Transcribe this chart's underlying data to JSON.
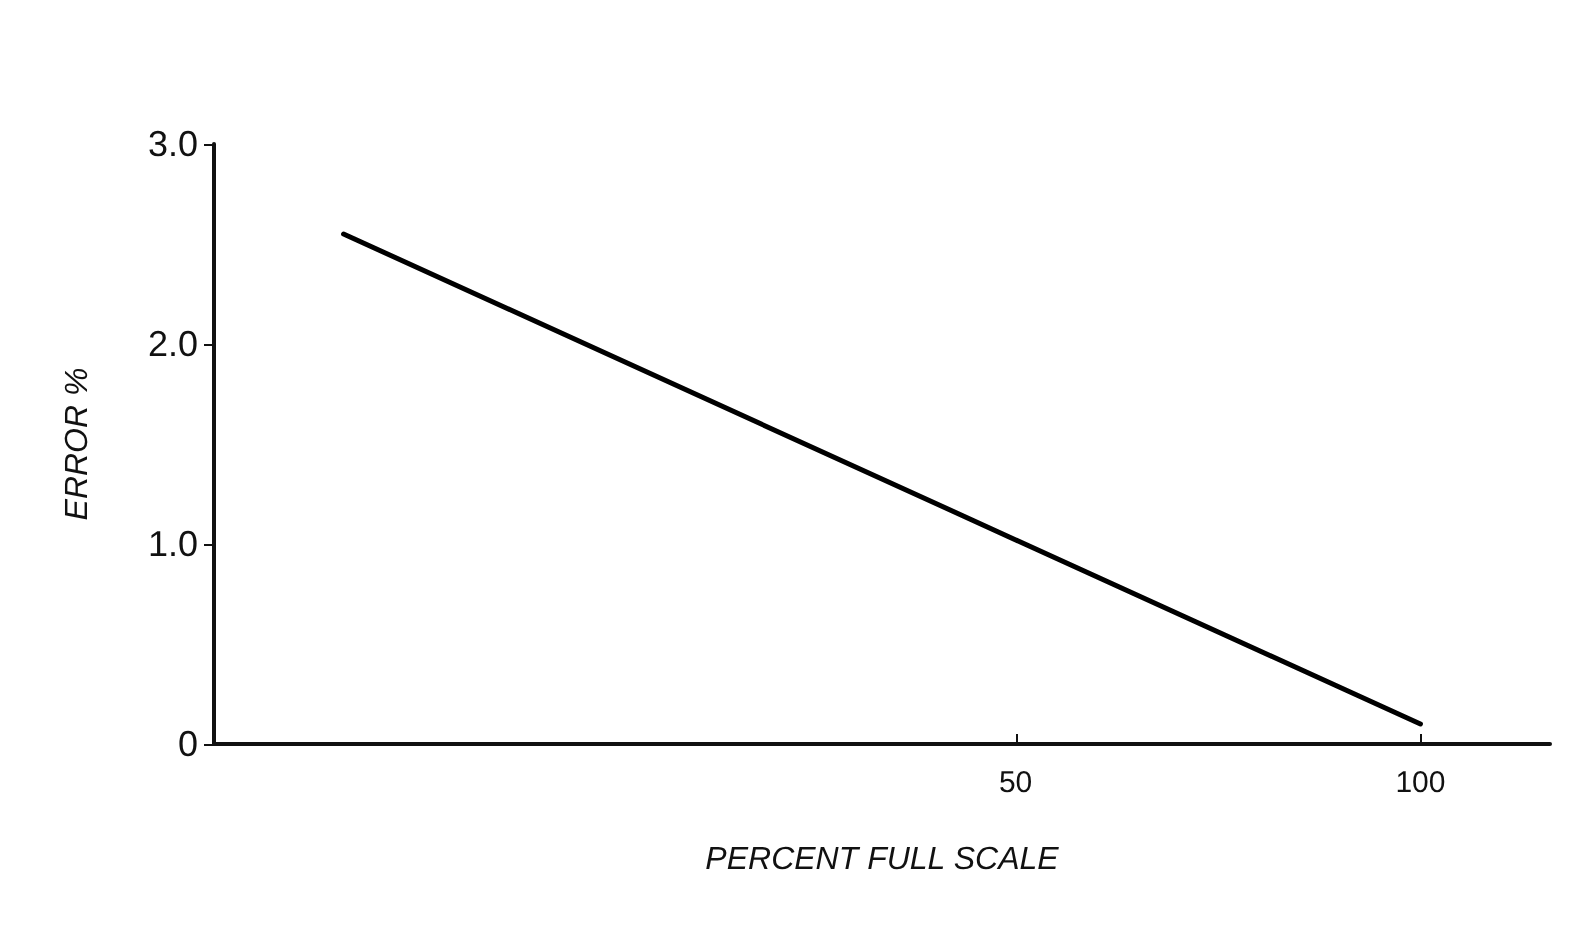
{
  "chart_data": {
    "type": "line",
    "xlabel": "PERCENT FULL SCALE",
    "ylabel": "ERROR %",
    "x": [
      -33,
      100
    ],
    "series": [
      {
        "color": "#000000",
        "values": [
          2.55,
          0.1
        ]
      }
    ],
    "xlim": [
      -49,
      116
    ],
    "xticks": [
      50,
      100
    ],
    "ylim": [
      0,
      3.0
    ],
    "yticks": [
      {
        "value": 0,
        "label": "0"
      },
      {
        "value": 1.0,
        "label": "1.0"
      },
      {
        "value": 2.0,
        "label": "2.0"
      },
      {
        "value": 3.0,
        "label": "3.0"
      }
    ],
    "grid": false,
    "marker": "none",
    "line_style": "solid"
  }
}
